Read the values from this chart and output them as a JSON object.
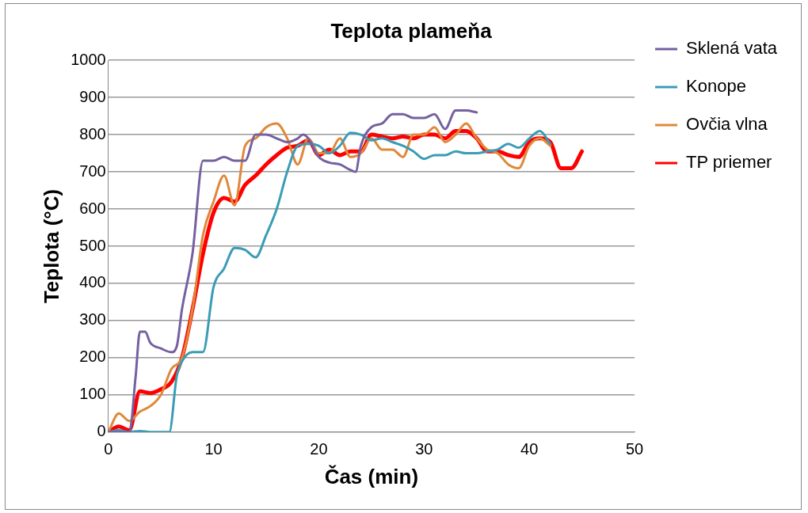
{
  "chart_data": {
    "type": "line",
    "title": "Teplota plameňa",
    "xlabel": "Čas (min)",
    "ylabel": "Teplota (°C)",
    "xlim": [
      0,
      50
    ],
    "xticks": [
      0,
      10,
      20,
      30,
      40,
      50
    ],
    "ylim": [
      0,
      1000
    ],
    "yticks": [
      0,
      100,
      200,
      300,
      400,
      500,
      600,
      700,
      800,
      900,
      1000
    ],
    "grid": "y",
    "legend": "right",
    "marker": "none",
    "line_style": "solid",
    "series": [
      {
        "name": "Sklená vata",
        "color": "#7560a0",
        "x": [
          0,
          1,
          2,
          2.6,
          3,
          3.5,
          4,
          5,
          6,
          6.5,
          7,
          8,
          9,
          10,
          11,
          12,
          13,
          14,
          15,
          16,
          17,
          18,
          18.5,
          19,
          20,
          21,
          22,
          23,
          23.5,
          24,
          25,
          26,
          27,
          28,
          29,
          30,
          31,
          32,
          33,
          34,
          35
        ],
        "values": [
          0,
          0,
          0,
          150,
          270,
          270,
          240,
          225,
          215,
          230,
          330,
          480,
          730,
          730,
          740,
          730,
          730,
          800,
          800,
          790,
          780,
          790,
          800,
          790,
          740,
          725,
          720,
          705,
          700,
          770,
          820,
          830,
          855,
          855,
          845,
          845,
          855,
          815,
          865,
          865,
          860
        ]
      },
      {
        "name": "Konope",
        "color": "#3a9cb5",
        "x": [
          0,
          1,
          2,
          3,
          4,
          5,
          5.8,
          6.5,
          7,
          8,
          9,
          10,
          11,
          12,
          13,
          14,
          15,
          16,
          17,
          18,
          19,
          20,
          21,
          22,
          23,
          24,
          25,
          26,
          27,
          28,
          29,
          30,
          31,
          32,
          33,
          34,
          35,
          36,
          37,
          38,
          39,
          40,
          41,
          42
        ],
        "values": [
          0,
          5,
          0,
          3,
          0,
          0,
          0,
          150,
          190,
          215,
          215,
          390,
          440,
          495,
          490,
          470,
          530,
          600,
          700,
          770,
          775,
          770,
          750,
          770,
          805,
          800,
          785,
          790,
          780,
          770,
          755,
          735,
          745,
          745,
          755,
          750,
          750,
          755,
          760,
          775,
          765,
          790,
          810,
          775
        ]
      },
      {
        "name": "Ovčia vlna",
        "color": "#e0883a",
        "x": [
          0,
          1,
          2,
          3,
          4,
          5,
          6,
          7,
          8,
          9,
          10,
          11,
          12,
          13,
          14,
          15,
          16,
          17,
          18,
          19,
          20,
          21,
          22,
          23,
          24,
          25,
          26,
          27,
          28,
          29,
          30,
          31,
          32,
          33,
          34,
          35,
          36,
          37,
          38,
          39,
          40,
          41,
          42
        ],
        "values": [
          0,
          50,
          30,
          55,
          70,
          100,
          170,
          200,
          330,
          530,
          620,
          690,
          610,
          770,
          790,
          820,
          830,
          790,
          720,
          790,
          750,
          750,
          790,
          740,
          750,
          790,
          760,
          760,
          740,
          800,
          800,
          820,
          780,
          800,
          830,
          790,
          760,
          750,
          720,
          710,
          770,
          790,
          770
        ]
      },
      {
        "name": "TP priemer",
        "color": "#ff0000",
        "x": [
          0,
          1,
          2,
          3,
          4,
          5,
          6,
          7,
          8,
          9,
          10,
          11,
          12,
          13,
          14,
          15,
          16,
          17,
          18,
          19,
          20,
          21,
          22,
          23,
          24,
          25,
          26,
          27,
          28,
          29,
          30,
          31,
          32,
          33,
          34,
          35,
          36,
          37,
          38,
          39,
          40,
          41,
          42,
          43,
          44,
          45
        ],
        "values": [
          0,
          15,
          5,
          110,
          105,
          115,
          135,
          200,
          330,
          480,
          590,
          630,
          620,
          665,
          690,
          720,
          745,
          765,
          770,
          785,
          745,
          760,
          745,
          755,
          755,
          800,
          795,
          790,
          795,
          790,
          800,
          800,
          790,
          810,
          810,
          790,
          755,
          755,
          745,
          740,
          780,
          790,
          780,
          710,
          710,
          755
        ]
      }
    ]
  }
}
